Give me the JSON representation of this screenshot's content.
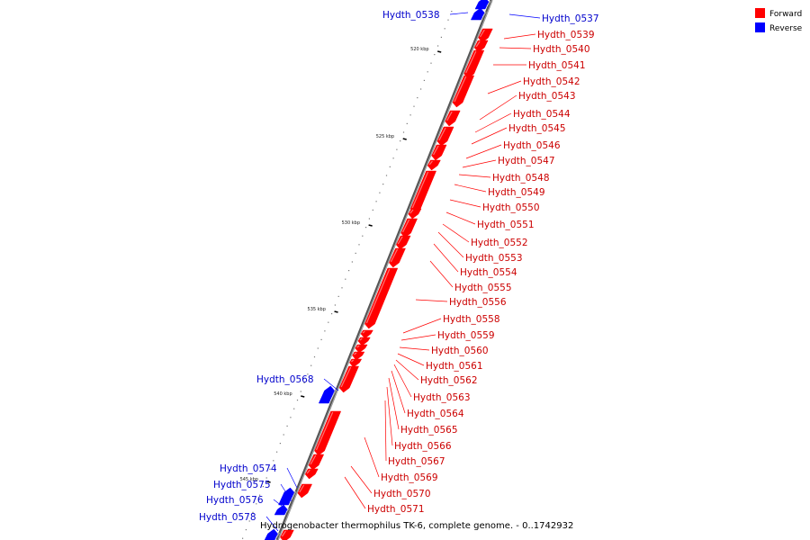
{
  "caption": "Hydrogenobacter thermophilus TK-6, complete genome. - 0..1742932",
  "colors": {
    "forward": "#ff0000",
    "reverse": "#0000ff",
    "forward_label": "#cc0000",
    "reverse_label": "#0000cc",
    "backbone": "#888888"
  },
  "legend": [
    {
      "key": "forward",
      "label": "Forward"
    },
    {
      "key": "reverse",
      "label": "Reverse"
    }
  ],
  "ticks": [
    "520 kbp",
    "525 kbp",
    "530 kbp",
    "535 kbp",
    "540 kbp",
    "545 kbp"
  ],
  "genes": [
    {
      "name": "Hydth_0538",
      "strand": "reverse"
    },
    {
      "name": "Hydth_0537",
      "strand": "reverse"
    },
    {
      "name": "Hydth_0539",
      "strand": "forward"
    },
    {
      "name": "Hydth_0540",
      "strand": "forward"
    },
    {
      "name": "Hydth_0541",
      "strand": "forward"
    },
    {
      "name": "Hydth_0542",
      "strand": "forward"
    },
    {
      "name": "Hydth_0543",
      "strand": "forward"
    },
    {
      "name": "Hydth_0544",
      "strand": "forward"
    },
    {
      "name": "Hydth_0545",
      "strand": "forward"
    },
    {
      "name": "Hydth_0546",
      "strand": "forward"
    },
    {
      "name": "Hydth_0547",
      "strand": "forward"
    },
    {
      "name": "Hydth_0548",
      "strand": "forward"
    },
    {
      "name": "Hydth_0549",
      "strand": "forward"
    },
    {
      "name": "Hydth_0550",
      "strand": "forward"
    },
    {
      "name": "Hydth_0551",
      "strand": "forward"
    },
    {
      "name": "Hydth_0552",
      "strand": "forward"
    },
    {
      "name": "Hydth_0553",
      "strand": "forward"
    },
    {
      "name": "Hydth_0554",
      "strand": "forward"
    },
    {
      "name": "Hydth_0555",
      "strand": "forward"
    },
    {
      "name": "Hydth_0556",
      "strand": "forward"
    },
    {
      "name": "Hydth_0558",
      "strand": "forward"
    },
    {
      "name": "Hydth_0559",
      "strand": "forward"
    },
    {
      "name": "Hydth_0560",
      "strand": "forward"
    },
    {
      "name": "Hydth_0561",
      "strand": "forward"
    },
    {
      "name": "Hydth_0562",
      "strand": "forward"
    },
    {
      "name": "Hydth_0563",
      "strand": "forward"
    },
    {
      "name": "Hydth_0564",
      "strand": "forward"
    },
    {
      "name": "Hydth_0565",
      "strand": "forward"
    },
    {
      "name": "Hydth_0566",
      "strand": "forward"
    },
    {
      "name": "Hydth_0567",
      "strand": "forward"
    },
    {
      "name": "Hydth_0568",
      "strand": "reverse"
    },
    {
      "name": "Hydth_0569",
      "strand": "forward"
    },
    {
      "name": "Hydth_0570",
      "strand": "forward"
    },
    {
      "name": "Hydth_0571",
      "strand": "forward"
    },
    {
      "name": "Hydth_0574",
      "strand": "reverse"
    },
    {
      "name": "Hydth_0575",
      "strand": "reverse"
    },
    {
      "name": "Hydth_0576",
      "strand": "reverse"
    },
    {
      "name": "Hydth_0578",
      "strand": "reverse"
    }
  ]
}
